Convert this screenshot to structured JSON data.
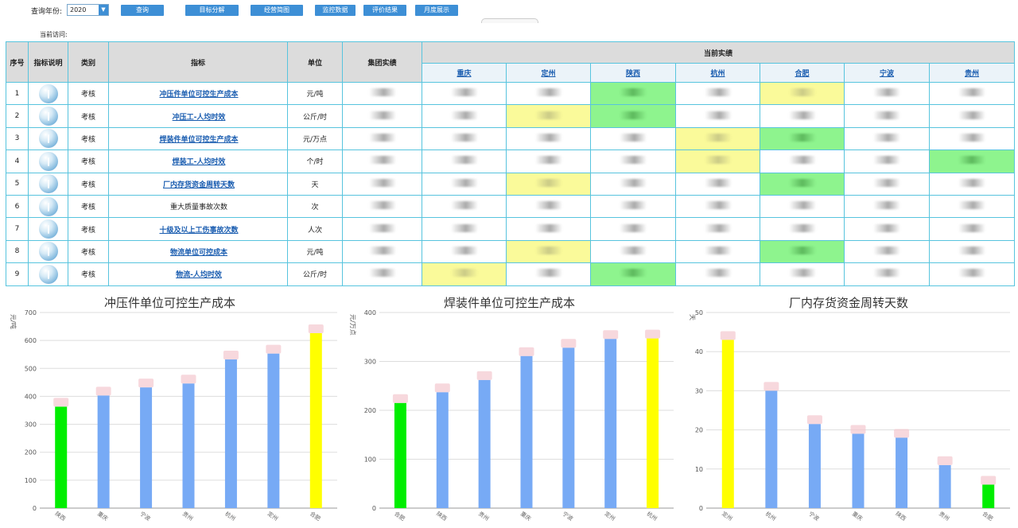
{
  "toolbar": {
    "year_label": "查询年份:",
    "year_value": "2020",
    "buttons": [
      "查询",
      "目标分解",
      "经营简图",
      "监控数据",
      "评价结果",
      "月度展示"
    ]
  },
  "current_visit": "当前访问:",
  "table": {
    "headers": {
      "no": "序号",
      "desc": "指标说明",
      "category": "类别",
      "indicator": "指标",
      "unit": "单位",
      "group": "集团实绩",
      "current": "当前实绩"
    },
    "cities": [
      "重庆",
      "定州",
      "陕西",
      "杭州",
      "合肥",
      "宁波",
      "贵州"
    ],
    "rows": [
      {
        "no": "1",
        "category": "考核",
        "indicator": "冲压件单位可控生产成本",
        "link": true,
        "unit": "元/吨",
        "hl": [
          "",
          "",
          "g",
          "",
          "y",
          "",
          ""
        ]
      },
      {
        "no": "2",
        "category": "考核",
        "indicator": "冲压工-人均时效",
        "link": true,
        "unit": "公斤/时",
        "hl": [
          "",
          "y",
          "g",
          "",
          "",
          "",
          ""
        ]
      },
      {
        "no": "3",
        "category": "考核",
        "indicator": "焊装件单位可控生产成本",
        "link": true,
        "unit": "元/万点",
        "hl": [
          "",
          "",
          "",
          "y",
          "g",
          "",
          ""
        ]
      },
      {
        "no": "4",
        "category": "考核",
        "indicator": "焊装工-人均时效",
        "link": true,
        "unit": "个/时",
        "hl": [
          "",
          "",
          "",
          "y",
          "",
          "",
          "g"
        ]
      },
      {
        "no": "5",
        "category": "考核",
        "indicator": "厂内存货资金周转天数",
        "link": true,
        "unit": "天",
        "hl": [
          "",
          "y",
          "",
          "",
          "g",
          "",
          ""
        ]
      },
      {
        "no": "6",
        "category": "考核",
        "indicator": "重大质量事故次数",
        "link": false,
        "unit": "次",
        "hl": [
          "",
          "",
          "",
          "",
          "",
          "",
          ""
        ]
      },
      {
        "no": "7",
        "category": "考核",
        "indicator": "十级及以上工伤事故次数",
        "link": true,
        "unit": "人次",
        "hl": [
          "",
          "",
          "",
          "",
          "",
          "",
          ""
        ]
      },
      {
        "no": "8",
        "category": "考核",
        "indicator": "物流单位可控成本",
        "link": true,
        "unit": "元/吨",
        "hl": [
          "",
          "y",
          "",
          "",
          "g",
          "",
          ""
        ]
      },
      {
        "no": "9",
        "category": "考核",
        "indicator": "物流-人均时效",
        "link": true,
        "unit": "公斤/时",
        "hl": [
          "y",
          "",
          "g",
          "",
          "",
          "",
          ""
        ]
      }
    ]
  },
  "colors": {
    "green": "#00ee00",
    "blue": "#77aaf5",
    "yellow": "#ffff00",
    "cap": "#f4c7cf"
  },
  "chart_data": [
    {
      "type": "bar",
      "title": "冲压件单位可控生产成本",
      "ylabel": "元/吨",
      "ylim": [
        0,
        700
      ],
      "yticks": [
        0,
        100,
        200,
        300,
        400,
        500,
        600,
        700
      ],
      "categories": [
        "陕西",
        "重庆",
        "宁波",
        "贵州",
        "杭州",
        "定州",
        "合肥"
      ],
      "values": [
        363,
        403,
        432,
        446,
        532,
        553,
        626
      ],
      "colors": [
        "green",
        "blue",
        "blue",
        "blue",
        "blue",
        "blue",
        "yellow"
      ]
    },
    {
      "type": "bar",
      "title": "焊装件单位可控生产成本",
      "ylabel": "元/万点",
      "ylim": [
        0,
        400
      ],
      "yticks": [
        0,
        100,
        200,
        300,
        400
      ],
      "categories": [
        "合肥",
        "陕西",
        "贵州",
        "重庆",
        "宁波",
        "定州",
        "杭州"
      ],
      "values": [
        215,
        237,
        262,
        311,
        328,
        346,
        347
      ],
      "colors": [
        "green",
        "blue",
        "blue",
        "blue",
        "blue",
        "blue",
        "yellow"
      ]
    },
    {
      "type": "bar",
      "title": "厂内存货资金周转天数",
      "ylabel": "天",
      "ylim": [
        0,
        50
      ],
      "yticks": [
        0,
        10,
        20,
        30,
        40,
        50
      ],
      "categories": [
        "定州",
        "杭州",
        "宁波",
        "重庆",
        "陕西",
        "贵州",
        "合肥"
      ],
      "values": [
        43,
        30,
        21.5,
        19,
        18,
        11,
        6
      ],
      "colors": [
        "yellow",
        "blue",
        "blue",
        "blue",
        "blue",
        "blue",
        "green"
      ]
    }
  ]
}
